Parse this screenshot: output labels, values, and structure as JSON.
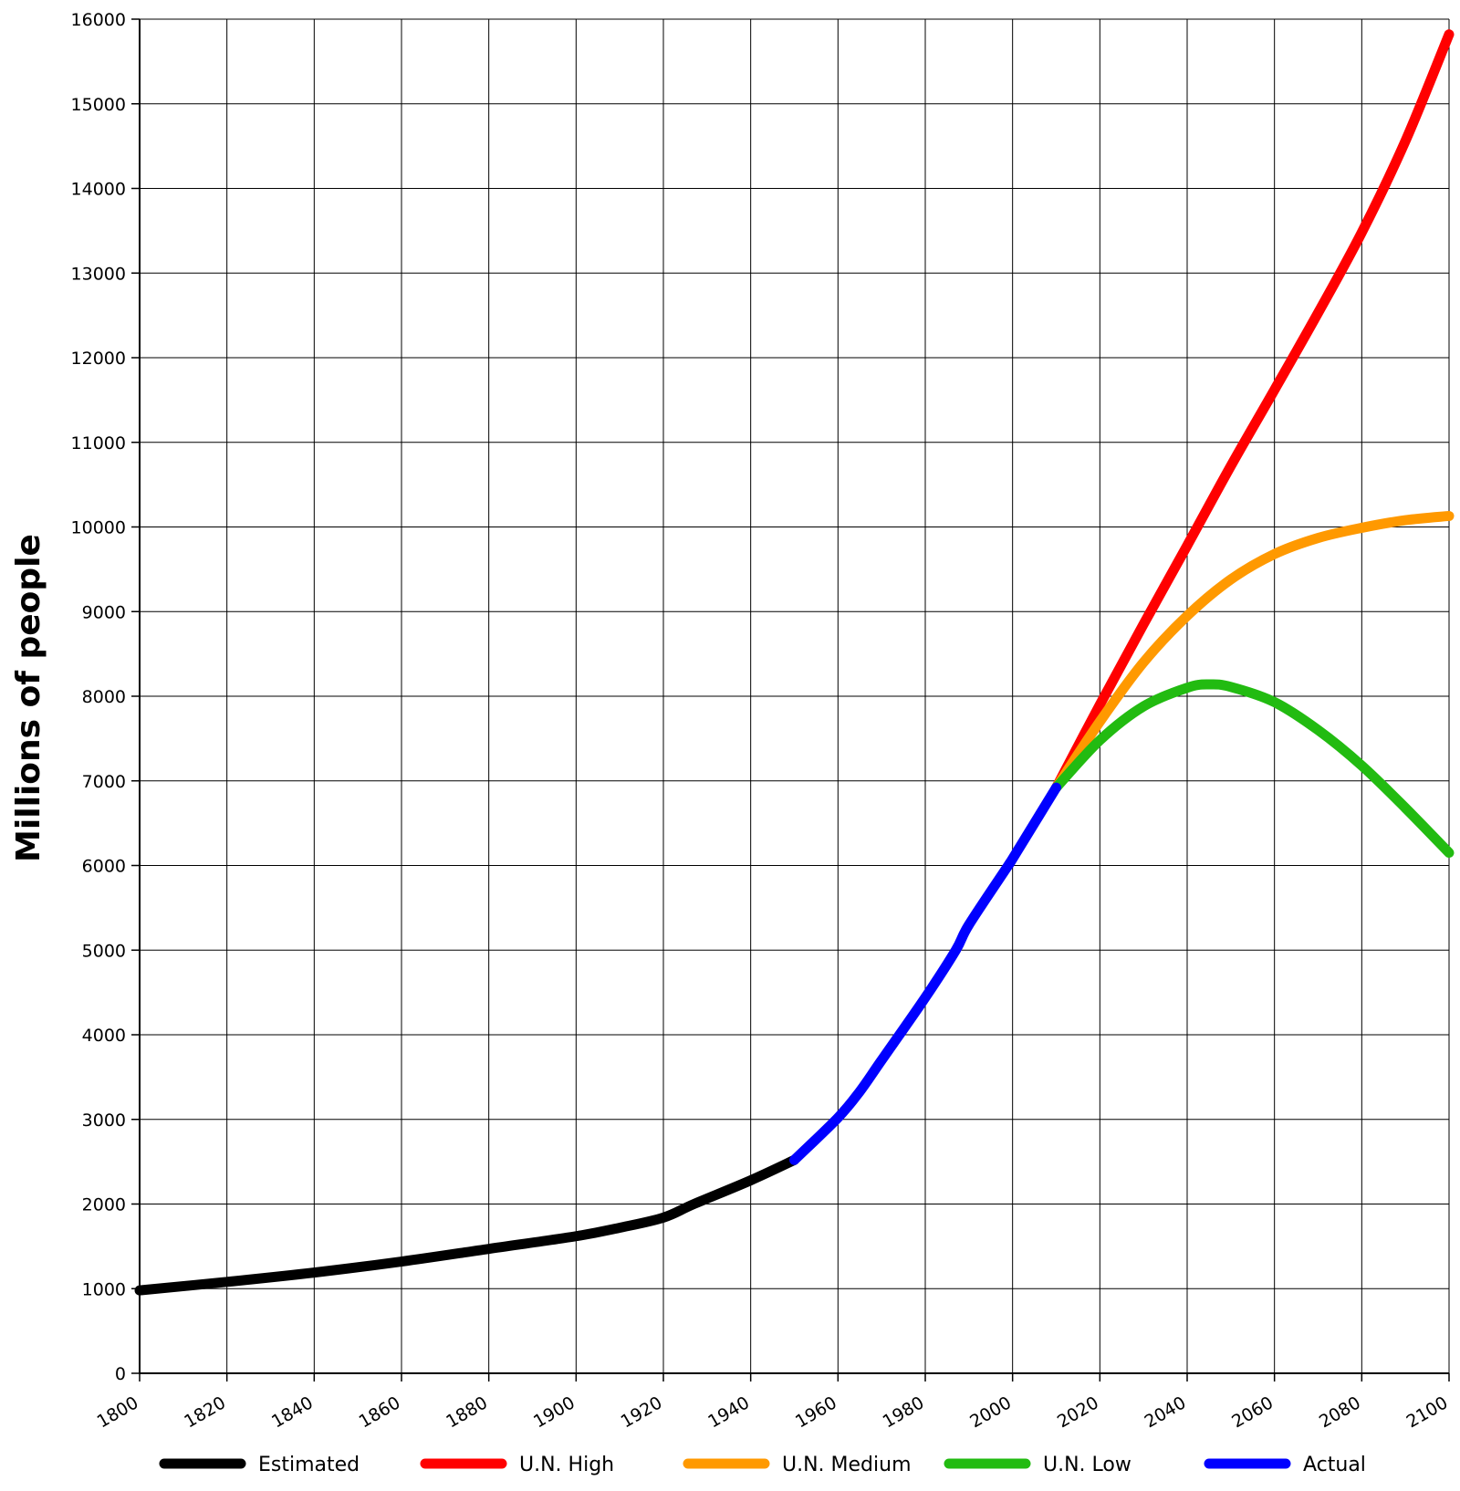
{
  "chart_data": {
    "type": "line",
    "title": "",
    "xlabel": "",
    "ylabel": "Millions of people",
    "xlim": [
      1800,
      2100
    ],
    "ylim": [
      0,
      16000
    ],
    "grid": true,
    "legend_position": "bottom",
    "x_ticks": [
      "1800",
      "1820",
      "1840",
      "1860",
      "1880",
      "1900",
      "1920",
      "1940",
      "1960",
      "1980",
      "2000",
      "2020",
      "2040",
      "2060",
      "2080",
      "2100"
    ],
    "y_ticks": [
      "0",
      "1000",
      "2000",
      "3000",
      "4000",
      "5000",
      "6000",
      "7000",
      "8000",
      "9000",
      "10000",
      "11000",
      "12000",
      "13000",
      "14000",
      "15000",
      "16000"
    ],
    "series": [
      {
        "name": "Estimated",
        "color": "#000000",
        "points": [
          [
            1800,
            980
          ],
          [
            1820,
            1080
          ],
          [
            1840,
            1190
          ],
          [
            1860,
            1320
          ],
          [
            1880,
            1470
          ],
          [
            1900,
            1620
          ],
          [
            1910,
            1720
          ],
          [
            1920,
            1840
          ],
          [
            1927,
            2000
          ],
          [
            1940,
            2280
          ],
          [
            1950,
            2520
          ]
        ]
      },
      {
        "name": "U.N. High",
        "color": "#ff0000",
        "points": [
          [
            2010,
            6920
          ],
          [
            2020,
            7900
          ],
          [
            2030,
            8850
          ],
          [
            2040,
            9780
          ],
          [
            2050,
            10720
          ],
          [
            2060,
            11620
          ],
          [
            2070,
            12530
          ],
          [
            2080,
            13480
          ],
          [
            2090,
            14560
          ],
          [
            2100,
            15820
          ]
        ]
      },
      {
        "name": "U.N. Medium",
        "color": "#ff9900",
        "points": [
          [
            2010,
            6920
          ],
          [
            2020,
            7700
          ],
          [
            2030,
            8400
          ],
          [
            2040,
            8950
          ],
          [
            2050,
            9380
          ],
          [
            2060,
            9680
          ],
          [
            2070,
            9870
          ],
          [
            2080,
            9990
          ],
          [
            2090,
            10080
          ],
          [
            2100,
            10130
          ]
        ]
      },
      {
        "name": "U.N. Low",
        "color": "#22bb11",
        "points": [
          [
            2010,
            6920
          ],
          [
            2020,
            7480
          ],
          [
            2030,
            7880
          ],
          [
            2040,
            8100
          ],
          [
            2045,
            8140
          ],
          [
            2050,
            8110
          ],
          [
            2060,
            7930
          ],
          [
            2070,
            7600
          ],
          [
            2080,
            7180
          ],
          [
            2090,
            6680
          ],
          [
            2100,
            6150
          ]
        ]
      },
      {
        "name": "Actual",
        "color": "#0000ff",
        "points": [
          [
            1950,
            2520
          ],
          [
            1960,
            3020
          ],
          [
            1965,
            3330
          ],
          [
            1970,
            3700
          ],
          [
            1980,
            4440
          ],
          [
            1987,
            5000
          ],
          [
            1990,
            5300
          ],
          [
            1999,
            6000
          ],
          [
            2000,
            6080
          ],
          [
            2010,
            6920
          ]
        ]
      }
    ]
  }
}
